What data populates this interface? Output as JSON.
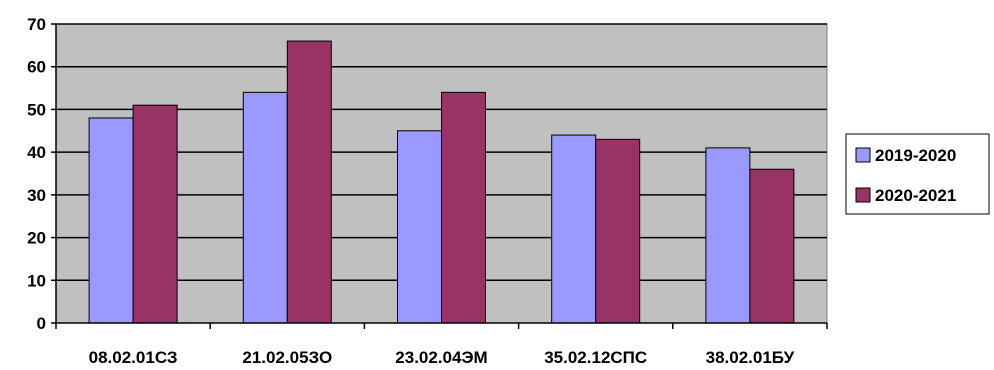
{
  "chart_data": {
    "type": "bar",
    "categories": [
      "08.02.01СЗ",
      "21.02.05ЗО",
      "23.02.04ЭМ",
      "35.02.12СПС",
      "38.02.01БУ"
    ],
    "series": [
      {
        "name": "2019-2020",
        "color": "#9999ff",
        "values": [
          48,
          54,
          45,
          44,
          41
        ]
      },
      {
        "name": "2020-2021",
        "color": "#993366",
        "values": [
          51,
          66,
          54,
          43,
          36
        ]
      }
    ],
    "ylim": [
      0,
      70
    ],
    "yticks": [
      0,
      10,
      20,
      30,
      40,
      50,
      60,
      70
    ],
    "grid": true,
    "plot_background": "#c0c0c0",
    "legend_position": "right"
  }
}
